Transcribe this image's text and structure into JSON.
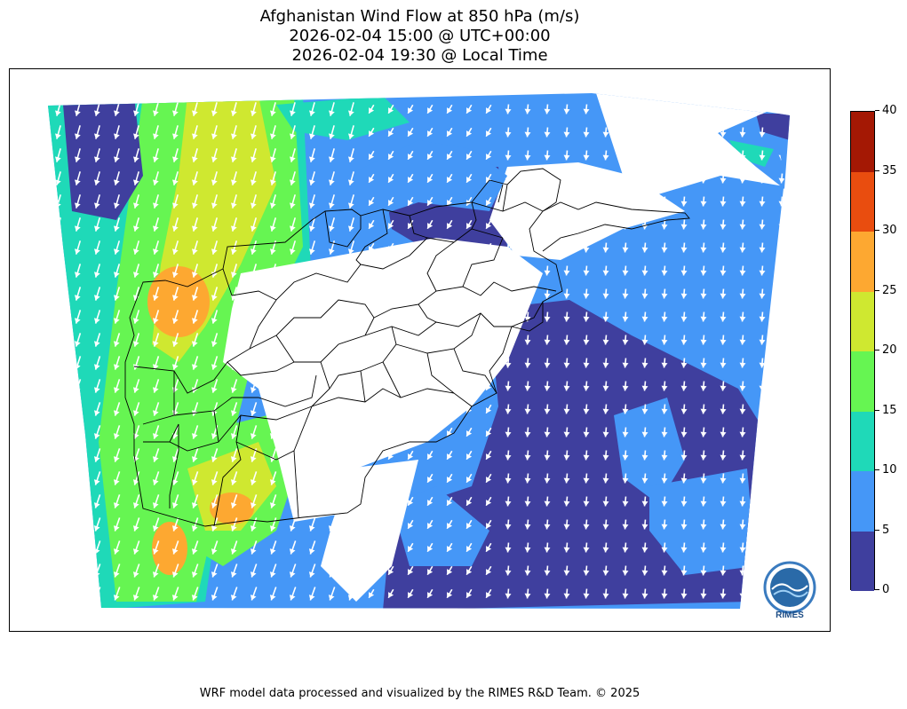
{
  "title": {
    "line1": "Afghanistan Wind Flow at 850 hPa (m/s)",
    "line2": "2026-02-04 15:00 @ UTC+00:00",
    "line3": "2026-02-04 19:30 @ Local Time"
  },
  "colorbar": {
    "levels": [
      0,
      5,
      10,
      15,
      20,
      25,
      30,
      35,
      40
    ],
    "colors": [
      "#3f3f9e",
      "#4597f7",
      "#1fd9b8",
      "#66f552",
      "#cfe830",
      "#fda831",
      "#e94d0f",
      "#a41804"
    ],
    "tick_labels": [
      "0",
      "5",
      "10",
      "15",
      "20",
      "25",
      "30",
      "35",
      "40"
    ]
  },
  "logo": {
    "text": "RIMES"
  },
  "footer": "WRF model data processed and visualized by the RIMES R&D Team. © 2025"
}
